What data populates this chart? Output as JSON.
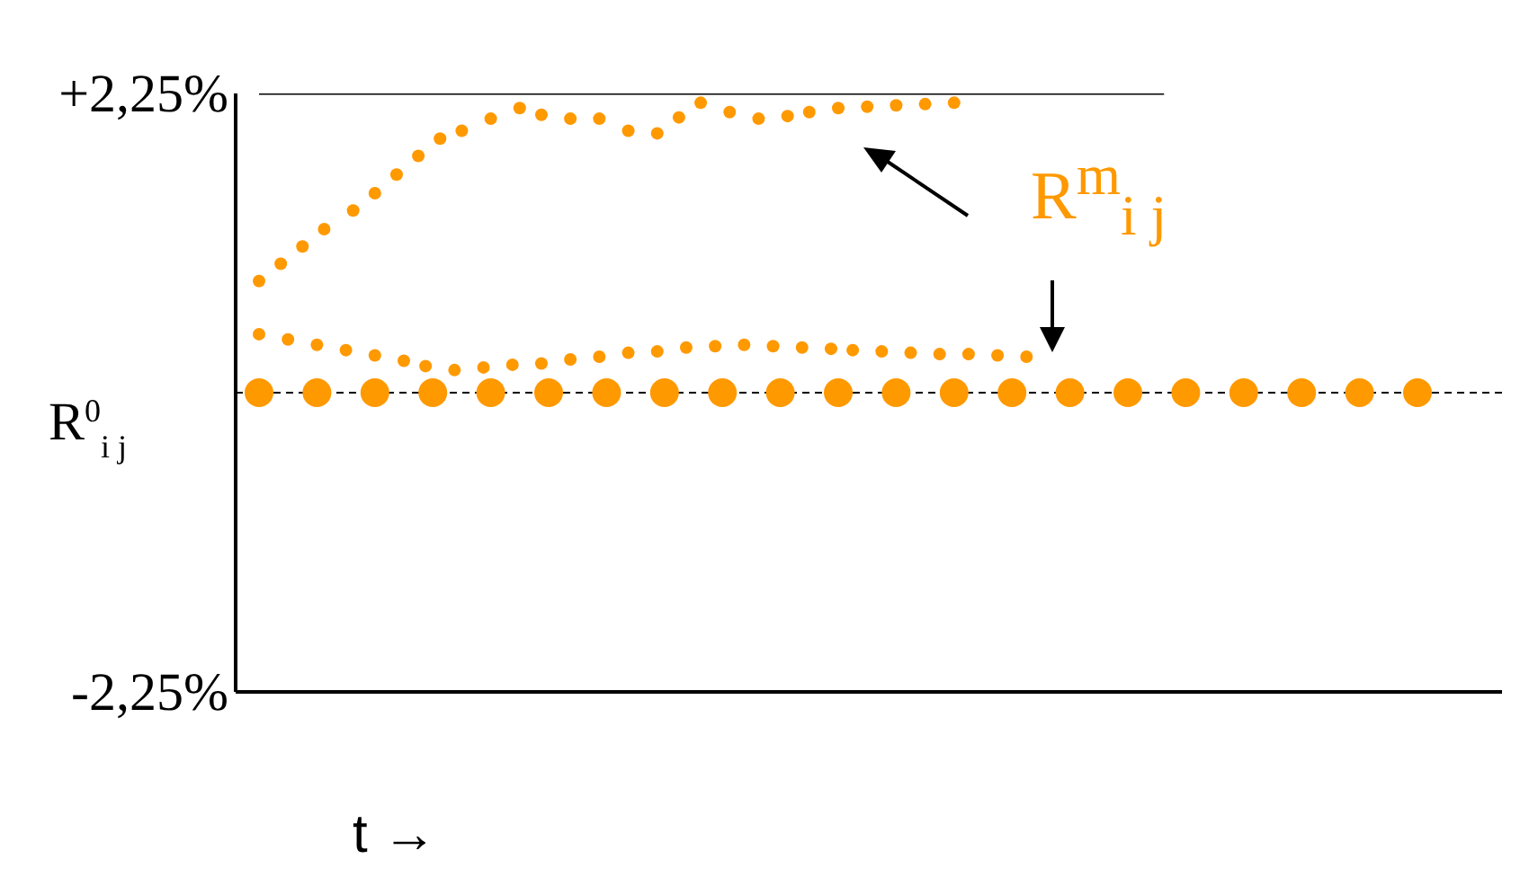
{
  "chart_data": {
    "type": "scatter",
    "xlabel": "t →",
    "tick_labels": "y",
    "marker": "circle",
    "ylim": [
      -2.25,
      2.25
    ],
    "yticks": [
      {
        "value": 2.25,
        "label": "+2,25%"
      },
      {
        "value": -2.25,
        "label": "-2,25%"
      }
    ],
    "ref_lines": [
      {
        "axis": "y",
        "value": 0,
        "label": "R$^{0}$$_{i j}$",
        "color": "#000000",
        "line_style": "dashed"
      }
    ],
    "annotations": [
      "R$^{m}$$_{i j}$"
    ],
    "categories": [
      null,
      null,
      null,
      null,
      null,
      null,
      null,
      null,
      null,
      null,
      null,
      null,
      null,
      null,
      null,
      null,
      null,
      null,
      null,
      null,
      null,
      null,
      null,
      null,
      null,
      null,
      null,
      null,
      null,
      null,
      null,
      null,
      null,
      null,
      null,
      null,
      null,
      null,
      null,
      null,
      null,
      null,
      null,
      null,
      null,
      null,
      null,
      null,
      null,
      null,
      null,
      null,
      null,
      null,
      null,
      null,
      null,
      null,
      null,
      null,
      null,
      null,
      null,
      null,
      null,
      null,
      null,
      null,
      null,
      null,
      null,
      null,
      null,
      null,
      null,
      null,
      null,
      null,
      null,
      null,
      null,
      null,
      null,
      null,
      null,
      null,
      null,
      null,
      null,
      null,
      null,
      null,
      null,
      null,
      null,
      null,
      null,
      null,
      null,
      null,
      null,
      null,
      null,
      null,
      null,
      null,
      null,
      null,
      null,
      null,
      null,
      null,
      null,
      null,
      null,
      null,
      null,
      null,
      null,
      null,
      null,
      null,
      null,
      null,
      null,
      null,
      null,
      null,
      null,
      null,
      null,
      null,
      null,
      null,
      null,
      null,
      null,
      null,
      null,
      null,
      null,
      null,
      null,
      null,
      null,
      null,
      null,
      null,
      null,
      null,
      null,
      null,
      null,
      null,
      null,
      null,
      null,
      null,
      null,
      null,
      null
    ],
    "series": [
      {
        "type": "line",
        "color": "#000000",
        "marker": "none",
        "values": [
          2.25,
          2.25,
          2.25,
          2.25,
          2.25,
          2.25,
          2.25,
          2.25,
          2.25,
          2.25,
          2.25,
          2.25,
          2.25,
          2.25,
          2.25,
          2.25,
          2.25,
          2.25,
          2.25,
          2.25,
          2.25,
          2.25,
          2.25,
          2.25,
          2.25,
          2.25,
          2.25,
          2.25,
          2.25,
          2.25,
          2.25,
          2.25,
          2.25,
          2.25,
          2.25,
          2.25,
          2.25,
          2.25,
          2.25,
          2.25,
          2.25,
          2.25,
          2.25,
          2.25,
          2.25,
          2.25,
          2.25,
          2.25,
          2.25,
          2.25,
          2.25,
          2.25,
          2.25,
          2.25,
          2.25,
          2.25,
          2.25,
          2.25,
          2.25,
          2.25,
          2.25,
          2.25,
          2.25,
          2.25,
          2.25,
          2.25,
          2.25,
          2.25,
          2.25,
          2.25,
          2.25,
          2.25,
          2.25,
          2.25,
          2.25,
          2.25,
          2.25,
          2.25,
          2.25,
          2.25,
          2.25,
          2.25,
          2.25,
          2.25,
          2.25,
          2.25,
          2.25,
          2.25,
          2.25,
          2.25,
          2.25,
          2.25,
          2.25,
          2.25,
          2.25,
          2.25,
          2.25,
          2.25,
          2.25,
          2.25,
          2.25,
          2.25,
          2.25,
          2.25,
          2.25,
          2.25,
          2.25,
          2.25,
          2.25,
          2.25,
          2.25,
          2.25,
          2.25,
          2.25,
          2.25,
          2.25,
          2.25,
          2.25,
          2.25,
          2.25,
          2.25,
          2.25,
          2.25,
          2.25,
          2.25,
          2.25,
          null,
          null,
          null,
          null,
          null,
          null,
          null,
          null,
          null,
          null,
          null,
          null,
          null,
          null,
          null,
          null,
          null,
          null,
          null,
          null,
          null,
          null,
          null,
          null,
          null,
          null,
          null,
          null,
          null,
          null,
          null,
          null,
          null,
          null,
          null
        ]
      },
      {
        "color": "#ff9900",
        "values": [
          0.84,
          null,
          null,
          0.97,
          null,
          null,
          1.1,
          null,
          null,
          1.23,
          null,
          null,
          null,
          1.37,
          null,
          null,
          1.5,
          null,
          null,
          1.64,
          null,
          null,
          1.78,
          null,
          null,
          1.91,
          null,
          null,
          1.97,
          null,
          null,
          null,
          2.06,
          null,
          null,
          null,
          2.14,
          null,
          null,
          2.09,
          null,
          null,
          null,
          2.06,
          null,
          null,
          null,
          2.06,
          null,
          null,
          null,
          1.97,
          null,
          null,
          null,
          1.95,
          null,
          null,
          2.07,
          null,
          null,
          2.18,
          null,
          null,
          null,
          2.11,
          null,
          null,
          null,
          2.06,
          null,
          null,
          null,
          2.08,
          null,
          null,
          2.11,
          null,
          null,
          null,
          2.14,
          null,
          null,
          null,
          2.15,
          null,
          null,
          null,
          2.16,
          null,
          null,
          null,
          2.17,
          null,
          null,
          null,
          2.18,
          null,
          null,
          null,
          null,
          null,
          null,
          null,
          null,
          null,
          null,
          null,
          null,
          null,
          null,
          null,
          null,
          null,
          null,
          null,
          null,
          null,
          null,
          null,
          null,
          null,
          null,
          null,
          null,
          null,
          null,
          null,
          null,
          null,
          null,
          null,
          null,
          null,
          null,
          null,
          null,
          null,
          null,
          null,
          null,
          null,
          null,
          null,
          null,
          null,
          null,
          null,
          null,
          null,
          null,
          null,
          null,
          null,
          null,
          null,
          null,
          null,
          null,
          null,
          null
        ]
      },
      {
        "color": "#ff9900",
        "values": [
          0.44,
          null,
          null,
          null,
          0.4,
          null,
          null,
          null,
          0.36,
          null,
          null,
          null,
          0.32,
          null,
          null,
          null,
          0.28,
          null,
          null,
          null,
          0.24,
          null,
          null,
          0.2,
          null,
          null,
          null,
          0.17,
          null,
          null,
          null,
          0.19,
          null,
          null,
          null,
          0.21,
          null,
          null,
          null,
          0.22,
          null,
          null,
          null,
          0.25,
          null,
          null,
          null,
          0.27,
          null,
          null,
          null,
          0.3,
          null,
          null,
          null,
          0.31,
          null,
          null,
          null,
          0.34,
          null,
          null,
          null,
          0.35,
          null,
          null,
          null,
          0.36,
          null,
          null,
          null,
          0.35,
          null,
          null,
          null,
          0.34,
          null,
          null,
          null,
          0.33,
          null,
          null,
          0.32,
          null,
          null,
          null,
          0.31,
          null,
          null,
          null,
          0.3,
          null,
          null,
          null,
          0.29,
          null,
          null,
          null,
          0.29,
          null,
          null,
          null,
          0.28,
          null,
          null,
          null,
          0.27,
          null,
          null,
          null,
          null,
          null,
          null,
          null,
          null,
          null,
          null,
          null,
          null,
          null,
          null,
          null,
          null,
          null,
          null,
          null,
          null,
          null,
          null,
          null,
          null,
          null,
          null,
          null,
          null,
          null,
          null,
          null,
          null,
          null,
          null,
          null,
          null,
          null,
          null,
          null,
          null,
          null,
          null,
          null,
          null,
          null,
          null,
          null,
          null,
          null,
          null,
          null,
          null,
          null,
          null
        ]
      },
      {
        "color": "#ff9900",
        "values": [
          0,
          null,
          null,
          null,
          null,
          null,
          null,
          null,
          0,
          null,
          null,
          null,
          null,
          null,
          null,
          null,
          0,
          null,
          null,
          null,
          null,
          null,
          null,
          null,
          0,
          null,
          null,
          null,
          null,
          null,
          null,
          null,
          0,
          null,
          null,
          null,
          null,
          null,
          null,
          null,
          0,
          null,
          null,
          null,
          null,
          null,
          null,
          null,
          0,
          null,
          null,
          null,
          null,
          null,
          null,
          null,
          0,
          null,
          null,
          null,
          null,
          null,
          null,
          null,
          0,
          null,
          null,
          null,
          null,
          null,
          null,
          null,
          0,
          null,
          null,
          null,
          null,
          null,
          null,
          null,
          0,
          null,
          null,
          null,
          null,
          null,
          null,
          null,
          0,
          null,
          null,
          null,
          null,
          null,
          null,
          null,
          0,
          null,
          null,
          null,
          null,
          null,
          null,
          null,
          0,
          null,
          null,
          null,
          null,
          null,
          null,
          null,
          0,
          null,
          null,
          null,
          null,
          null,
          null,
          null,
          0,
          null,
          null,
          null,
          null,
          null,
          null,
          null,
          0,
          null,
          null,
          null,
          null,
          null,
          null,
          null,
          0,
          null,
          null,
          null,
          null,
          null,
          null,
          null,
          0,
          null,
          null,
          null,
          null,
          null,
          null,
          null,
          0,
          null,
          null,
          null,
          null,
          null,
          null,
          null,
          0
        ]
      }
    ]
  }
}
